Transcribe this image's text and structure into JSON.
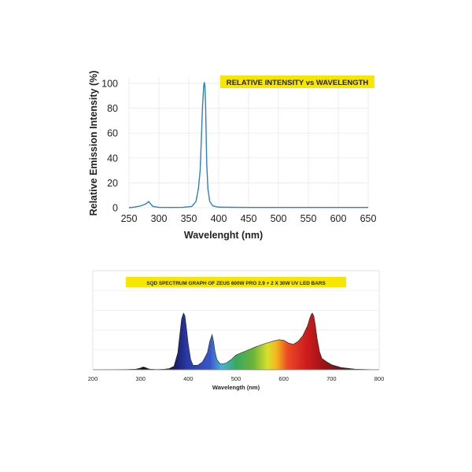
{
  "chart_data": [
    {
      "type": "line",
      "title": "RELATIVE INTENSITY vs WAVELENGTH",
      "title_bg": "#f7e600",
      "xlabel": "Wavelenght (nm)",
      "ylabel": "Relative Emission Intensity (%)",
      "xlim": [
        250,
        650
      ],
      "ylim": [
        0,
        100
      ],
      "xticks": [
        "250",
        "300",
        "350",
        "400",
        "450",
        "500",
        "550",
        "600",
        "650"
      ],
      "yticks": [
        "0",
        "20",
        "40",
        "60",
        "80",
        "100"
      ],
      "grid": true,
      "series_color": "#2f7fc1",
      "series": [
        {
          "x": [
            250,
            260,
            270,
            278,
            283,
            286,
            290,
            300,
            320,
            340,
            355,
            362,
            366,
            369,
            371,
            373,
            375,
            376,
            377,
            378,
            379,
            380,
            382,
            385,
            390,
            400,
            450,
            500,
            550,
            600,
            650
          ],
          "y": [
            0,
            0.5,
            1.5,
            3,
            5,
            3,
            1,
            0.3,
            0.2,
            0.3,
            1,
            5,
            15,
            30,
            55,
            82,
            98,
            101,
            97,
            85,
            60,
            35,
            15,
            5,
            1.5,
            0.4,
            0.2,
            0.2,
            0.2,
            0.2,
            0.2
          ]
        }
      ]
    },
    {
      "type": "area",
      "title": "SQD SPECTRUM GRAPH OF ZEUS 600W PRO 2.9 + 2 X 30W UV LED BARS",
      "title_bg": "#f7e600",
      "xlabel": "Wavelength (nm)",
      "xlim": [
        200,
        800
      ],
      "xticks": [
        "200",
        "300",
        "400",
        "500",
        "600",
        "700",
        "800"
      ],
      "ylim": [
        0,
        1
      ],
      "grid": true,
      "series": [
        {
          "x": [
            200,
            270,
            290,
            300,
            305,
            310,
            315,
            320,
            335,
            350,
            360,
            370,
            378,
            382,
            386,
            390,
            393,
            396,
            400,
            405,
            410,
            420,
            430,
            440,
            445,
            450,
            453,
            456,
            460,
            465,
            470,
            480,
            490,
            500,
            520,
            540,
            560,
            580,
            590,
            600,
            610,
            620,
            630,
            640,
            650,
            655,
            658,
            660,
            663,
            666,
            670,
            675,
            680,
            690,
            700,
            720,
            750,
            800
          ],
          "y": [
            0,
            0.005,
            0.01,
            0.03,
            0.05,
            0.04,
            0.02,
            0.01,
            0.005,
            0.01,
            0.02,
            0.06,
            0.3,
            0.6,
            0.9,
            1.0,
            0.95,
            0.75,
            0.45,
            0.18,
            0.08,
            0.08,
            0.14,
            0.3,
            0.5,
            0.62,
            0.5,
            0.32,
            0.18,
            0.12,
            0.1,
            0.12,
            0.18,
            0.26,
            0.33,
            0.4,
            0.46,
            0.51,
            0.53,
            0.52,
            0.47,
            0.45,
            0.5,
            0.6,
            0.78,
            0.92,
            0.98,
            1.0,
            0.95,
            0.8,
            0.55,
            0.32,
            0.2,
            0.14,
            0.09,
            0.04,
            0.01,
            0
          ]
        }
      ]
    }
  ]
}
